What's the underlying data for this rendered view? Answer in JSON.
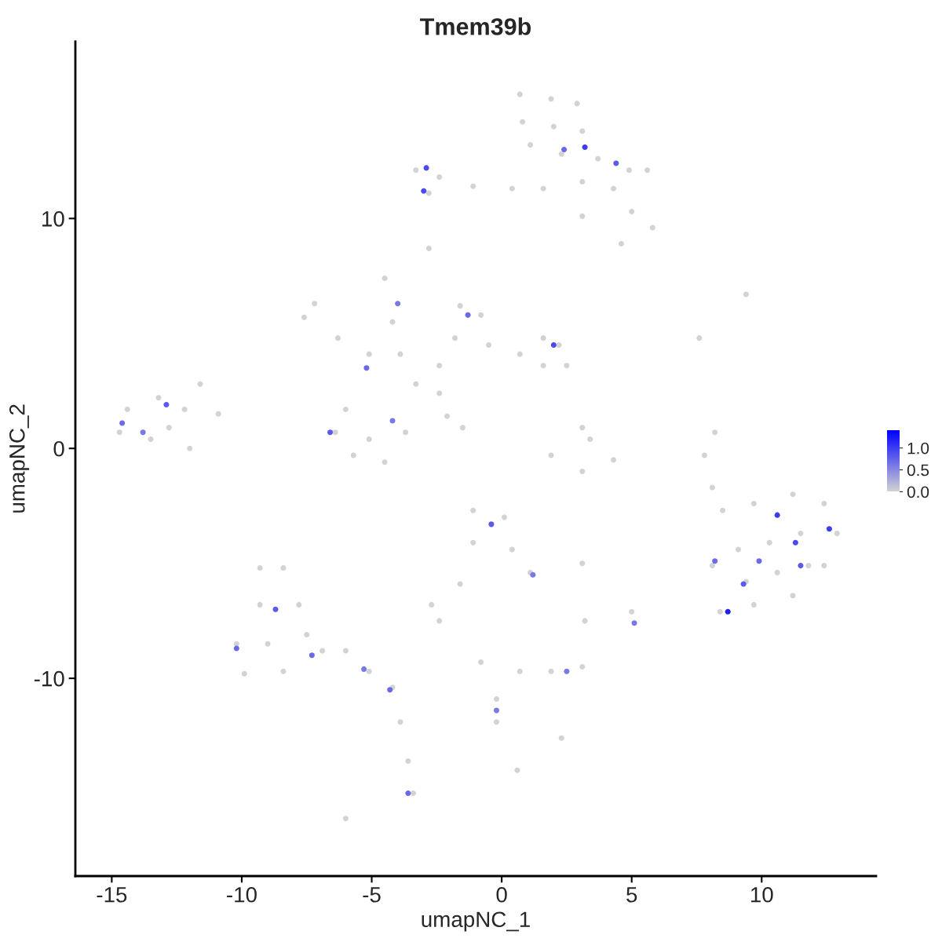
{
  "chart_data": {
    "type": "scatter",
    "title": "Tmem39b",
    "xlabel": "umapNC_1",
    "ylabel": "umapNC_2",
    "xlim": [
      -16.4,
      14.4
    ],
    "ylim": [
      -18.6,
      17.7
    ],
    "xticks": [
      -15,
      -10,
      -5,
      0,
      5,
      10
    ],
    "yticks": [
      -10,
      0,
      10
    ],
    "clim": [
      0,
      1.4
    ],
    "cticks": [
      {
        "value": 0,
        "label": "0.0"
      },
      {
        "value": 0.5,
        "label": "0.5"
      },
      {
        "value": 1,
        "label": "1.0"
      }
    ],
    "grid": false,
    "marker": "circle",
    "series": [
      {
        "x": [
          0.7,
          1.9,
          2.9,
          0.8,
          2.0,
          3.1,
          1.1,
          2.3,
          3.7,
          4.9,
          5.6,
          4.3,
          3.1,
          1.6,
          5.0,
          5.8,
          4.6,
          3.1,
          -3.3,
          -2.4,
          -2.8,
          -1.1,
          0.4,
          -2.8,
          -7.6,
          -7.2,
          -6.3,
          -5.1,
          -3.9,
          -4.5,
          -4.2,
          -6.4,
          -5.7,
          -4.5,
          -3.7,
          -5.1,
          -6.0,
          -3.3,
          -2.4,
          -2.1,
          -1.5,
          -1.6,
          -0.8,
          -1.8,
          -0.5,
          -2.4,
          0.7,
          1.6,
          2.2,
          2.5,
          1.6,
          -14.4,
          -13.2,
          -12.2,
          -14.7,
          -13.5,
          -12.0,
          -12.8,
          -11.6,
          -10.9,
          3.1,
          1.9,
          3.1,
          4.3,
          3.4,
          8.2,
          7.8,
          8.1,
          7.6,
          9.4,
          8.5,
          9.7,
          11.2,
          12.4,
          12.9,
          12.4,
          11.2,
          9.7,
          8.4,
          8.1,
          9.1,
          10.3,
          11.5,
          10.6,
          9.4,
          11.8,
          -1.1,
          0.1,
          -1.1,
          0.4,
          1.1,
          -1.6,
          3.1,
          -2.7,
          -2.4,
          -0.8,
          -0.2,
          -0.2,
          0.7,
          1.9,
          3.1,
          2.3,
          3.2,
          5.0,
          0.6,
          -9.3,
          -8.4,
          -9.3,
          -7.8,
          -10.2,
          -9.0,
          -7.5,
          -9.9,
          -8.4,
          -6.9,
          -6.0,
          -5.1,
          -4.2,
          -3.9,
          -3.6,
          -3.4,
          -6.0,
          2.4,
          3.2,
          4.4,
          -2.9,
          -3.0,
          -5.2,
          -6.6,
          -1.3,
          2.0,
          -4.2,
          -4.0,
          -14.6,
          -12.9,
          -13.8,
          8.7,
          10.6,
          11.3,
          12.6,
          9.3,
          11.5,
          9.9,
          8.2,
          -0.4,
          1.2,
          2.5,
          -0.2,
          5.1,
          -10.2,
          -8.7,
          -7.3,
          -4.3,
          -3.6,
          -5.3
        ],
        "values": [
          15.4,
          15.2,
          15.0,
          14.2,
          14.0,
          13.8,
          13.2,
          12.8,
          12.6,
          12.1,
          12.1,
          11.3,
          11.6,
          11.3,
          10.3,
          9.6,
          8.9,
          10.1,
          12.1,
          11.8,
          11.1,
          11.4,
          11.3,
          8.7,
          5.7,
          6.3,
          4.8,
          4.1,
          4.1,
          7.4,
          5.5,
          0.7,
          -0.3,
          -0.6,
          0.7,
          0.4,
          1.7,
          2.8,
          2.4,
          1.4,
          0.9,
          6.2,
          5.8,
          4.8,
          4.5,
          3.6,
          4.1,
          4.8,
          4.5,
          3.6,
          3.6,
          1.7,
          2.2,
          1.7,
          0.7,
          0.4,
          0.0,
          0.9,
          2.8,
          1.5,
          0.9,
          -0.3,
          -1.0,
          -0.5,
          0.4,
          0.7,
          -0.3,
          -1.7,
          4.8,
          6.7,
          -2.7,
          -2.4,
          -2.0,
          -2.4,
          -3.7,
          -5.1,
          -6.4,
          -6.8,
          -7.1,
          -5.1,
          -4.4,
          -4.1,
          -3.7,
          -5.4,
          -5.8,
          -5.1,
          -2.7,
          -3.0,
          -4.1,
          -4.4,
          -5.4,
          -5.9,
          -5.0,
          -6.8,
          -7.5,
          -9.3,
          -10.9,
          -11.9,
          -9.7,
          -9.7,
          -9.5,
          -12.6,
          -7.5,
          -7.1,
          -14.0,
          -5.2,
          -5.2,
          -6.8,
          -6.8,
          -8.5,
          -8.5,
          -8.1,
          -9.8,
          -9.7,
          -8.8,
          -8.8,
          -9.7,
          -10.4,
          -11.9,
          -13.6,
          -15.0,
          -16.1,
          13.0,
          13.1,
          12.4,
          12.2,
          11.2,
          3.5,
          0.7,
          5.8,
          4.5,
          1.2,
          6.3,
          1.1,
          1.9,
          0.7,
          -7.1,
          -2.9,
          -4.1,
          -3.5,
          -5.9,
          -5.1,
          -4.9,
          -4.9,
          -3.3,
          -5.5,
          -9.7,
          -11.4,
          -7.6,
          -8.7,
          -7.0,
          -9.0,
          -10.5,
          -15.0,
          -9.6
        ],
        "cvalues": [
          0,
          0,
          0,
          0,
          0,
          0,
          0,
          0,
          0,
          0,
          0,
          0,
          0,
          0,
          0,
          0,
          0,
          0,
          0,
          0,
          0,
          0,
          0,
          0,
          0,
          0,
          0,
          0,
          0,
          0,
          0,
          0,
          0,
          0,
          0,
          0,
          0,
          0,
          0,
          0,
          0,
          0,
          0,
          0,
          0,
          0,
          0,
          0,
          0,
          0,
          0,
          0,
          0,
          0,
          0,
          0,
          0,
          0,
          0,
          0,
          0,
          0,
          0,
          0,
          0,
          0,
          0,
          0,
          0,
          0,
          0,
          0,
          0,
          0,
          0,
          0,
          0,
          0,
          0,
          0,
          0,
          0,
          0,
          0,
          0,
          0,
          0,
          0,
          0,
          0,
          0,
          0,
          0,
          0,
          0,
          0,
          0,
          0,
          0,
          0,
          0,
          0,
          0,
          0,
          0,
          0,
          0,
          0,
          0,
          0,
          0,
          0,
          0,
          0,
          0,
          0,
          0,
          0,
          0,
          0,
          0,
          0,
          0.7,
          1.0,
          0.8,
          0.9,
          0.9,
          0.7,
          0.8,
          0.7,
          0.9,
          0.6,
          0.6,
          0.7,
          0.8,
          0.6,
          1.2,
          1.0,
          0.9,
          1.0,
          0.8,
          0.8,
          0.7,
          0.7,
          0.8,
          0.6,
          0.6,
          0.6,
          0.6,
          0.7,
          0.8,
          0.7,
          0.7,
          0.7,
          0.6
        ]
      }
    ]
  }
}
